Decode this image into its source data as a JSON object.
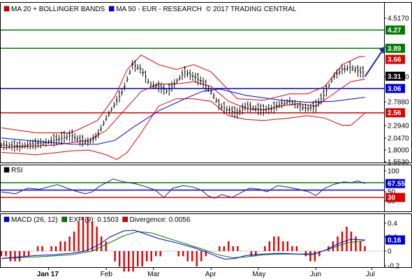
{
  "chart_data": [
    {
      "type": "ohlc",
      "panel": "price",
      "legend": [
        {
          "name": "MA 20 + BOLLINGER BANDS",
          "color": "#e00000",
          "marker": "square"
        },
        {
          "name": "MA 50 - EUR - RESEARCH",
          "color": "#0000dd",
          "marker": "square"
        },
        {
          "name": "© 2017 TRADING CENTRAL",
          "color": "",
          "marker": "none"
        }
      ],
      "yticks": [
        "4.5170",
        "3.3000",
        "2.7880",
        "2.2940",
        "2.0470",
        "1.8000",
        "1.5530"
      ],
      "ylim": [
        1.553,
        4.6
      ],
      "price_points": [
        [
          0,
          1.9
        ],
        [
          10,
          1.88
        ],
        [
          20,
          1.93
        ],
        [
          25,
          1.95
        ],
        [
          35,
          2.05
        ],
        [
          40,
          2.1
        ],
        [
          45,
          2.0
        ],
        [
          50,
          1.97
        ],
        [
          55,
          2.1
        ],
        [
          60,
          2.45
        ],
        [
          65,
          2.75
        ],
        [
          70,
          3.05
        ],
        [
          73,
          3.35
        ],
        [
          75,
          3.55
        ],
        [
          78,
          3.5
        ],
        [
          80,
          3.45
        ],
        [
          85,
          3.15
        ],
        [
          90,
          3.1
        ],
        [
          95,
          3.0
        ],
        [
          100,
          3.2
        ],
        [
          105,
          3.4
        ],
        [
          110,
          3.3
        ],
        [
          115,
          3.2
        ],
        [
          120,
          3.0
        ],
        [
          125,
          2.7
        ],
        [
          130,
          2.62
        ],
        [
          135,
          2.55
        ],
        [
          140,
          2.7
        ],
        [
          145,
          2.65
        ],
        [
          150,
          2.62
        ],
        [
          155,
          2.65
        ],
        [
          160,
          2.75
        ],
        [
          165,
          2.8
        ],
        [
          170,
          2.7
        ],
        [
          175,
          2.65
        ],
        [
          180,
          2.7
        ],
        [
          185,
          2.95
        ],
        [
          190,
          3.3
        ],
        [
          195,
          3.45
        ],
        [
          200,
          3.5
        ],
        [
          205,
          3.4
        ],
        [
          208,
          3.4
        ]
      ],
      "ma20_points": [
        [
          0,
          1.85
        ],
        [
          30,
          1.9
        ],
        [
          50,
          2.0
        ],
        [
          60,
          2.2
        ],
        [
          70,
          2.6
        ],
        [
          80,
          3.0
        ],
        [
          90,
          3.15
        ],
        [
          100,
          3.15
        ],
        [
          110,
          3.2
        ],
        [
          120,
          3.1
        ],
        [
          130,
          2.8
        ],
        [
          140,
          2.65
        ],
        [
          150,
          2.62
        ],
        [
          160,
          2.7
        ],
        [
          170,
          2.75
        ],
        [
          180,
          2.7
        ],
        [
          190,
          2.95
        ],
        [
          200,
          3.2
        ],
        [
          208,
          3.25
        ]
      ],
      "upper_band_points": [
        [
          0,
          2.25
        ],
        [
          20,
          2.15
        ],
        [
          40,
          2.15
        ],
        [
          55,
          2.4
        ],
        [
          65,
          2.9
        ],
        [
          72,
          3.45
        ],
        [
          80,
          3.75
        ],
        [
          90,
          3.55
        ],
        [
          100,
          3.45
        ],
        [
          110,
          3.55
        ],
        [
          120,
          3.4
        ],
        [
          128,
          3.1
        ],
        [
          135,
          2.85
        ],
        [
          150,
          2.82
        ],
        [
          165,
          2.95
        ],
        [
          175,
          2.95
        ],
        [
          185,
          3.1
        ],
        [
          195,
          3.55
        ],
        [
          205,
          3.72
        ],
        [
          208,
          3.72
        ]
      ],
      "lower_band_points": [
        [
          0,
          1.75
        ],
        [
          20,
          1.7
        ],
        [
          40,
          1.78
        ],
        [
          50,
          1.8
        ],
        [
          60,
          1.7
        ],
        [
          66,
          1.6
        ],
        [
          72,
          1.75
        ],
        [
          80,
          2.15
        ],
        [
          90,
          2.7
        ],
        [
          100,
          2.85
        ],
        [
          110,
          2.85
        ],
        [
          120,
          2.8
        ],
        [
          130,
          2.5
        ],
        [
          140,
          2.42
        ],
        [
          150,
          2.4
        ],
        [
          165,
          2.45
        ],
        [
          175,
          2.5
        ],
        [
          185,
          2.45
        ],
        [
          195,
          2.3
        ],
        [
          200,
          2.3
        ],
        [
          208,
          2.55
        ]
      ],
      "ma50_points": [
        [
          0,
          2.05
        ],
        [
          20,
          1.98
        ],
        [
          40,
          1.92
        ],
        [
          55,
          1.92
        ],
        [
          65,
          2.0
        ],
        [
          75,
          2.25
        ],
        [
          90,
          2.6
        ],
        [
          105,
          2.85
        ],
        [
          115,
          3.0
        ],
        [
          125,
          3.05
        ],
        [
          140,
          2.92
        ],
        [
          160,
          2.82
        ],
        [
          175,
          2.78
        ],
        [
          190,
          2.8
        ],
        [
          208,
          2.88
        ]
      ],
      "projection_arrow": [
        [
          208,
          3.3
        ],
        [
          219,
          3.89
        ]
      ],
      "levels": [
        {
          "value": "4.27",
          "y": 4.27,
          "color": "#007a00"
        },
        {
          "value": "3.89",
          "y": 3.89,
          "color": "#007a00"
        },
        {
          "value": "3.06",
          "y": 3.06,
          "color": "#0000dd"
        },
        {
          "value": "2.56",
          "y": 2.56,
          "color": "#dd0000"
        }
      ],
      "last_values": [
        {
          "value": "3.66",
          "y": 3.66,
          "color": "#dd0000"
        },
        {
          "value": "3.31",
          "y": 3.31,
          "color": "#000000"
        }
      ]
    },
    {
      "type": "line",
      "panel": "rsi",
      "legend": [
        {
          "name": "RSI",
          "color": "#000000",
          "marker": "square"
        }
      ],
      "yticks": [
        "100",
        "50",
        "30"
      ],
      "ylim": [
        0,
        100
      ],
      "series": [
        {
          "name": "RSI",
          "points": [
            [
              0,
              45
            ],
            [
              8,
              40
            ],
            [
              15,
              55
            ],
            [
              22,
              52
            ],
            [
              28,
              60
            ],
            [
              32,
              65
            ],
            [
              36,
              58
            ],
            [
              42,
              48
            ],
            [
              48,
              40
            ],
            [
              52,
              45
            ],
            [
              56,
              60
            ],
            [
              60,
              70
            ],
            [
              64,
              80
            ],
            [
              70,
              72
            ],
            [
              76,
              68
            ],
            [
              82,
              60
            ],
            [
              88,
              50
            ],
            [
              93,
              30
            ],
            [
              98,
              55
            ],
            [
              104,
              62
            ],
            [
              110,
              58
            ],
            [
              115,
              48
            ],
            [
              118,
              35
            ],
            [
              122,
              28
            ],
            [
              126,
              38
            ],
            [
              132,
              30
            ],
            [
              138,
              45
            ],
            [
              142,
              55
            ],
            [
              148,
              52
            ],
            [
              152,
              45
            ],
            [
              158,
              62
            ],
            [
              164,
              58
            ],
            [
              170,
              52
            ],
            [
              176,
              45
            ],
            [
              180,
              35
            ],
            [
              185,
              55
            ],
            [
              190,
              65
            ],
            [
              196,
              72
            ],
            [
              200,
              70
            ],
            [
              204,
              75
            ],
            [
              208,
              67.55
            ]
          ]
        }
      ],
      "levels": [
        {
          "value": "67.55",
          "y": 67.55,
          "color": "#0000dd"
        },
        {
          "value": "30",
          "y": 30,
          "color": "#dd0000"
        }
      ],
      "guide_lines": [
        {
          "y": 70,
          "color": "#007a00"
        },
        {
          "y": 50,
          "color": "#0000dd"
        },
        {
          "y": 30,
          "color": "#dd0000"
        }
      ]
    },
    {
      "type": "line+bar",
      "panel": "macd",
      "legend": [
        {
          "name": "MACD (26, 12)",
          "color": "#0000dd",
          "marker": "square"
        },
        {
          "name": "EXP (9): 0.1503",
          "color": "#007a00",
          "marker": "square"
        },
        {
          "name": "Divergence: 0.0056",
          "color": "#dd0000",
          "marker": "square"
        }
      ],
      "yticks": [
        "0.4",
        "0.2",
        "0",
        "-0.2"
      ],
      "ylim": [
        -0.2,
        0.4
      ],
      "series": [
        {
          "name": "MACD (26, 12)",
          "points": [
            [
              0,
              -0.1
            ],
            [
              10,
              -0.08
            ],
            [
              20,
              -0.06
            ],
            [
              30,
              -0.05
            ],
            [
              40,
              -0.03
            ],
            [
              48,
              0.0
            ],
            [
              55,
              0.08
            ],
            [
              62,
              0.2
            ],
            [
              70,
              0.29
            ],
            [
              76,
              0.3
            ],
            [
              82,
              0.25
            ],
            [
              90,
              0.18
            ],
            [
              100,
              0.12
            ],
            [
              110,
              0.05
            ],
            [
              118,
              -0.02
            ],
            [
              124,
              -0.08
            ],
            [
              128,
              -0.11
            ],
            [
              134,
              -0.1
            ],
            [
              140,
              -0.06
            ],
            [
              150,
              -0.04
            ],
            [
              160,
              -0.03
            ],
            [
              170,
              -0.04
            ],
            [
              178,
              -0.05
            ],
            [
              186,
              0.02
            ],
            [
              194,
              0.12
            ],
            [
              200,
              0.17
            ],
            [
              208,
              0.16
            ]
          ]
        },
        {
          "name": "EXP (9): 0.1503",
          "points": [
            [
              0,
              -0.1
            ],
            [
              20,
              -0.08
            ],
            [
              40,
              -0.05
            ],
            [
              52,
              0.0
            ],
            [
              62,
              0.12
            ],
            [
              70,
              0.22
            ],
            [
              78,
              0.28
            ],
            [
              86,
              0.26
            ],
            [
              96,
              0.18
            ],
            [
              106,
              0.1
            ],
            [
              116,
              0.02
            ],
            [
              124,
              -0.05
            ],
            [
              132,
              -0.09
            ],
            [
              140,
              -0.08
            ],
            [
              150,
              -0.05
            ],
            [
              162,
              -0.04
            ],
            [
              172,
              -0.04
            ],
            [
              180,
              -0.03
            ],
            [
              190,
              0.05
            ],
            [
              198,
              0.12
            ],
            [
              208,
              0.15
            ]
          ]
        }
      ],
      "divergence": [
        -0.01,
        -0.01,
        -0.02,
        -0.02,
        -0.02,
        -0.01,
        -0.01,
        0.0,
        0.01,
        0.01,
        0.0,
        0.01,
        0.01,
        0.02,
        0.02,
        0.03,
        0.04,
        0.06,
        0.07,
        0.07,
        0.06,
        0.05,
        0.03,
        0.02,
        0.0,
        -0.02,
        -0.03,
        -0.04,
        -0.04,
        -0.04,
        -0.03,
        -0.03,
        -0.02,
        -0.02,
        -0.01,
        -0.01,
        0.0,
        0.0,
        0.0,
        -0.01,
        -0.01,
        -0.02,
        -0.02,
        -0.03,
        -0.02,
        -0.01,
        0.0,
        0.0,
        0.01,
        0.01,
        0.02,
        0.01,
        0.01,
        0.0,
        0.0,
        -0.01,
        -0.01,
        0.0,
        0.01,
        0.02,
        0.03,
        0.03,
        0.02,
        0.02,
        0.01,
        0.01,
        0.0,
        -0.01,
        -0.02,
        -0.02,
        -0.01,
        0.0,
        0.01,
        0.02,
        0.03,
        0.04,
        0.05,
        0.04,
        0.03,
        0.02,
        0.01
      ],
      "levels": [
        {
          "value": "0.16",
          "y": 0.16,
          "color": "#0000dd"
        }
      ]
    }
  ],
  "x_axis": {
    "labels": [
      {
        "text": "Jan 17",
        "pos": 27
      },
      {
        "text": "Feb",
        "pos": 60
      },
      {
        "text": "Mar",
        "pos": 87
      },
      {
        "text": "Apr",
        "pos": 120
      },
      {
        "text": "May",
        "pos": 147
      },
      {
        "text": "Jun",
        "pos": 180
      },
      {
        "text": "Jul",
        "pos": 212
      }
    ]
  }
}
